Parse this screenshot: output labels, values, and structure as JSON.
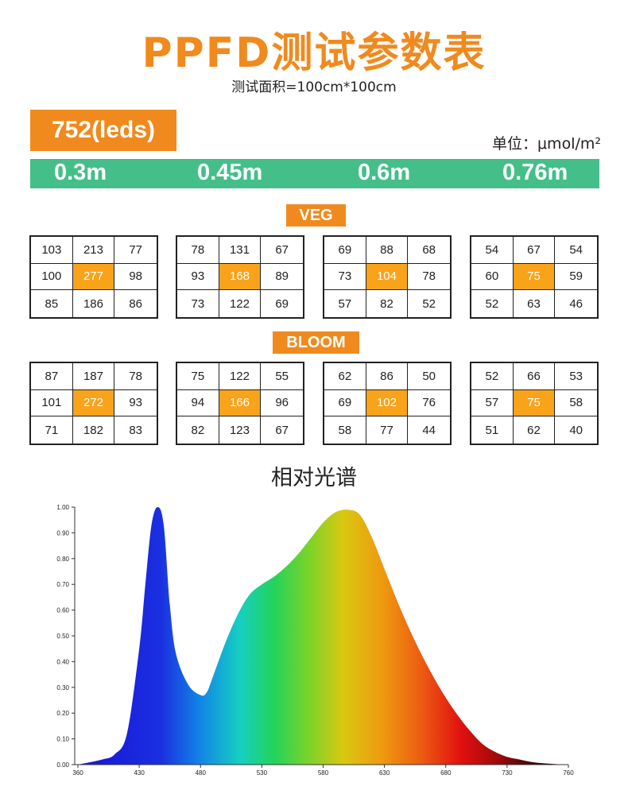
{
  "title": "PPFD测试参数表",
  "subtitle": "测试面积=100cm*100cm",
  "model": "752(leds)",
  "unit": "单位：μmol/m²",
  "heights": [
    "0.3m",
    "0.45m",
    "0.6m",
    "0.76m"
  ],
  "colors": {
    "accent": "#f08a1e",
    "center_highlight": "#f8a31a",
    "height_bar": "#44bf89"
  },
  "veg": {
    "label": "VEG",
    "grids": [
      [
        [
          103,
          213,
          77
        ],
        [
          100,
          277,
          98
        ],
        [
          85,
          186,
          86
        ]
      ],
      [
        [
          78,
          131,
          67
        ],
        [
          93,
          168,
          89
        ],
        [
          73,
          122,
          69
        ]
      ],
      [
        [
          69,
          88,
          68
        ],
        [
          73,
          104,
          78
        ],
        [
          57,
          82,
          52
        ]
      ],
      [
        [
          54,
          67,
          54
        ],
        [
          60,
          75,
          59
        ],
        [
          52,
          63,
          46
        ]
      ]
    ]
  },
  "bloom": {
    "label": "BLOOM",
    "grids": [
      [
        [
          87,
          187,
          78
        ],
        [
          101,
          272,
          93
        ],
        [
          71,
          182,
          83
        ]
      ],
      [
        [
          75,
          122,
          55
        ],
        [
          94,
          166,
          96
        ],
        [
          82,
          123,
          67
        ]
      ],
      [
        [
          62,
          86,
          50
        ],
        [
          69,
          102,
          76
        ],
        [
          58,
          77,
          44
        ]
      ],
      [
        [
          52,
          66,
          53
        ],
        [
          57,
          75,
          58
        ],
        [
          51,
          62,
          40
        ]
      ]
    ]
  },
  "chart_title": "相对光谱",
  "chart_data": {
    "type": "area",
    "title": "相对光谱",
    "xlabel": "",
    "ylabel": "",
    "xlim": [
      360,
      760
    ],
    "ylim": [
      0,
      1.0
    ],
    "x_ticks": [
      "360",
      "430",
      "480",
      "530",
      "580",
      "630",
      "680",
      "730",
      "760"
    ],
    "y_ticks": [
      "0.00",
      "0.10",
      "0.20",
      "0.30",
      "0.40",
      "0.50",
      "0.60",
      "0.70",
      "0.80",
      "0.90",
      "1.00"
    ],
    "x": [
      360,
      380,
      390,
      400,
      410,
      415,
      420,
      425,
      430,
      435,
      440,
      450,
      460,
      465,
      470,
      480,
      490,
      500,
      510,
      520,
      530,
      540,
      550,
      560,
      570,
      580,
      590,
      600,
      610,
      620,
      630,
      640,
      650,
      660,
      670,
      680,
      690,
      700,
      710,
      720,
      730,
      740,
      750,
      760
    ],
    "y": [
      0.0,
      0.02,
      0.04,
      0.12,
      0.45,
      0.7,
      0.93,
      1.0,
      0.93,
      0.62,
      0.43,
      0.31,
      0.27,
      0.28,
      0.34,
      0.47,
      0.58,
      0.66,
      0.7,
      0.73,
      0.77,
      0.82,
      0.88,
      0.94,
      0.98,
      0.99,
      0.97,
      0.88,
      0.76,
      0.64,
      0.53,
      0.43,
      0.34,
      0.26,
      0.19,
      0.13,
      0.08,
      0.05,
      0.03,
      0.02,
      0.01,
      0.005,
      0.002,
      0.0
    ],
    "grid": false
  }
}
